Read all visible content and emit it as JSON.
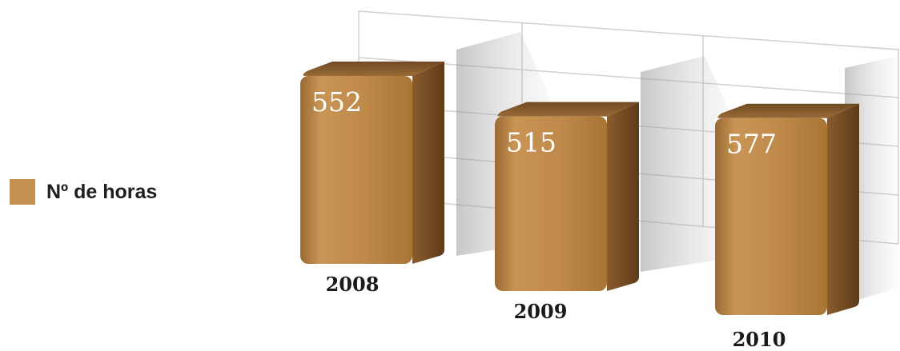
{
  "legend": {
    "label": "Nº de horas",
    "color": "#c49050"
  },
  "chart_data": {
    "type": "bar",
    "title": "",
    "xlabel": "",
    "ylabel": "",
    "categories": [
      "2008",
      "2009",
      "2010"
    ],
    "series": [
      {
        "name": "Nº de horas",
        "values": [
          552,
          515,
          577
        ]
      }
    ],
    "data_labels": [
      "552",
      "515",
      "577"
    ],
    "style": "3d-box",
    "grid": true,
    "legend_position": "left",
    "colors": {
      "bar_front": "#c28d4e",
      "bar_top": "#8a5c2c",
      "bar_side": "#6e4620",
      "grid": "#cfcfcf"
    }
  }
}
